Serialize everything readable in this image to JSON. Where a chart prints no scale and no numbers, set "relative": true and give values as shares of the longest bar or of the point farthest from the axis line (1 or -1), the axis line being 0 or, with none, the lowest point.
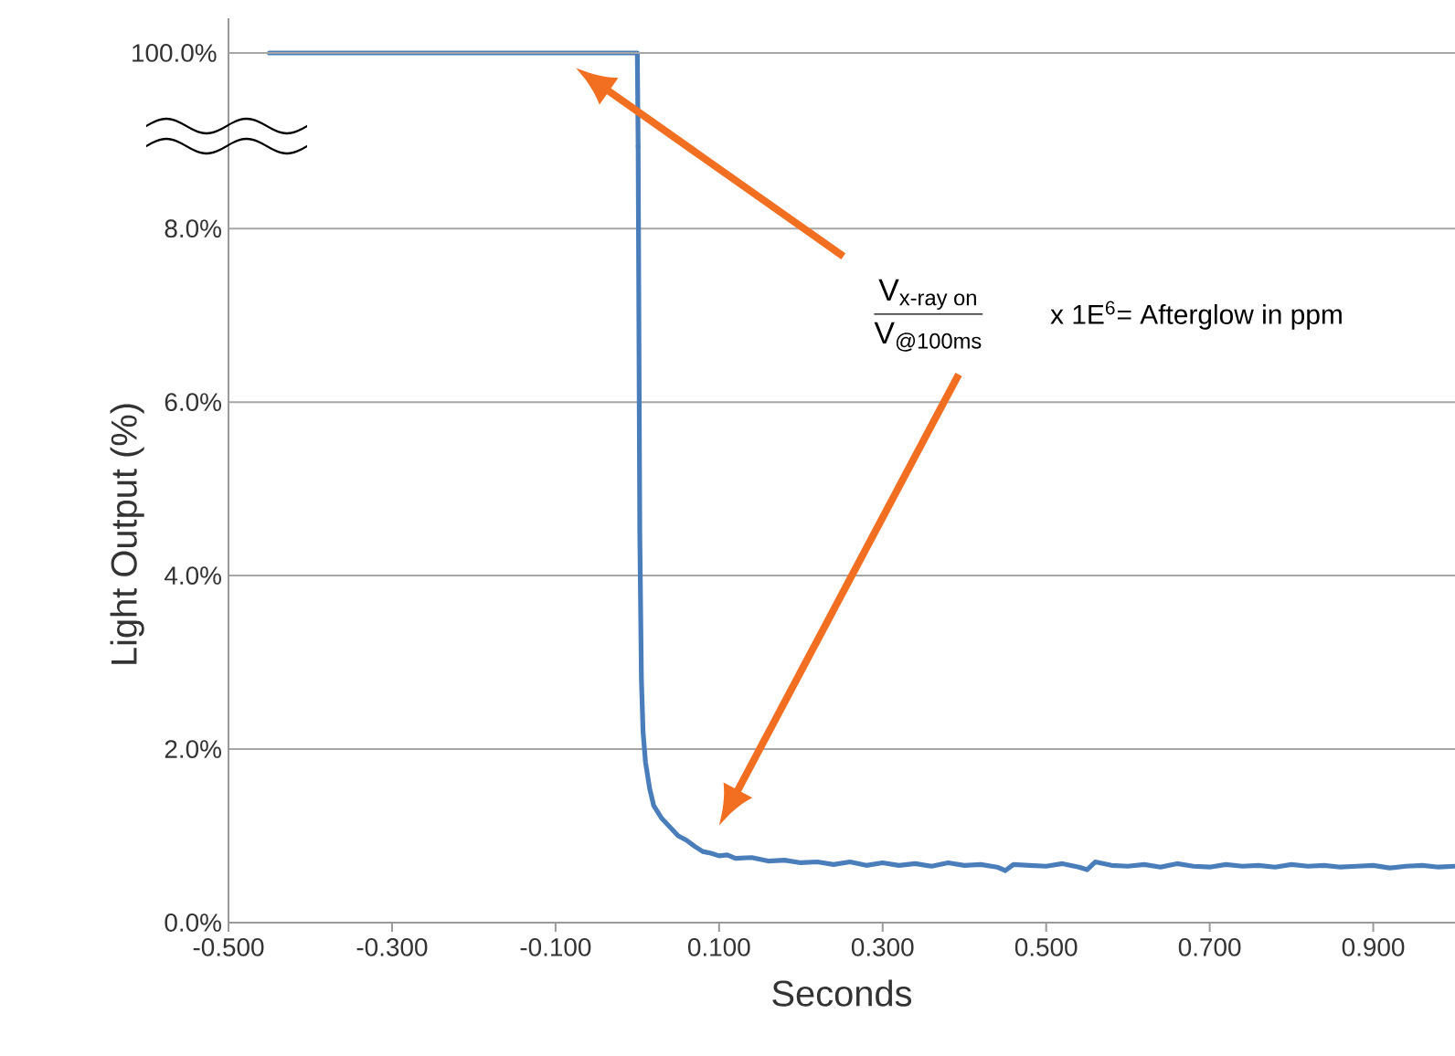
{
  "chart_data": [
    {
      "type": "line",
      "xlim": [
        -0.5,
        1.0
      ],
      "relative": true,
      "ref_lines": [
        {
          "axis": "y",
          "value": 1,
          "label": "100.0%"
        }
      ],
      "series": [
        {
          "color": "#4a7ebb",
          "x": [
            -0.45,
            -0.2,
            0.0,
            0.001
          ],
          "values": [
            1,
            1,
            1,
            0
          ]
        }
      ]
    },
    {
      "type": "line",
      "xlim": [
        -0.5,
        1.0
      ],
      "ylim": [
        0,
        8.95
      ],
      "xlabel": "Seconds",
      "ylabel": "Light Output (%)",
      "grid": "y",
      "xticks": [
        {
          "value": -0.5,
          "label": "-0.500"
        },
        {
          "value": -0.3,
          "label": "-0.300"
        },
        {
          "value": -0.1,
          "label": "-0.100"
        },
        {
          "value": 0.1,
          "label": "0.100"
        },
        {
          "value": 0.3,
          "label": "0.300"
        },
        {
          "value": 0.5,
          "label": "0.500"
        },
        {
          "value": 0.7,
          "label": "0.700"
        },
        {
          "value": 0.9,
          "label": "0.900"
        }
      ],
      "yticks": [
        {
          "value": 0,
          "label": "0.0%"
        },
        {
          "value": 2,
          "label": "2.0%"
        },
        {
          "value": 4,
          "label": "4.0%"
        },
        {
          "value": 6,
          "label": "6.0%"
        },
        {
          "value": 8,
          "label": "8.0%"
        }
      ],
      "annotations": [
        "\\frac{\\text{V}_{\\text{x-ray on}}}{\\text{V}_{\\text{@100ms}}}",
        "x 1E$^{6}$= Afterglow in ppm"
      ],
      "series": [
        {
          "color": "#4a7ebb",
          "x": [
            0.001,
            0.003,
            0.005,
            0.007,
            0.01,
            0.015,
            0.02,
            0.03,
            0.04,
            0.05,
            0.06,
            0.07,
            0.08,
            0.09,
            0.1,
            0.11,
            0.12,
            0.14,
            0.16,
            0.18,
            0.2,
            0.22,
            0.24,
            0.26,
            0.28,
            0.3,
            0.32,
            0.34,
            0.36,
            0.38,
            0.4,
            0.42,
            0.44,
            0.45,
            0.46,
            0.48,
            0.5,
            0.52,
            0.54,
            0.55,
            0.56,
            0.58,
            0.6,
            0.62,
            0.64,
            0.66,
            0.68,
            0.7,
            0.72,
            0.74,
            0.76,
            0.78,
            0.8,
            0.82,
            0.84,
            0.86,
            0.88,
            0.9,
            0.92,
            0.94,
            0.96,
            0.98,
            1.0
          ],
          "values": [
            8.95,
            4.5,
            2.8,
            2.2,
            1.85,
            1.55,
            1.35,
            1.2,
            1.1,
            1.0,
            0.95,
            0.88,
            0.82,
            0.8,
            0.77,
            0.78,
            0.74,
            0.75,
            0.71,
            0.72,
            0.69,
            0.7,
            0.67,
            0.7,
            0.66,
            0.69,
            0.66,
            0.68,
            0.65,
            0.69,
            0.66,
            0.67,
            0.64,
            0.6,
            0.67,
            0.66,
            0.65,
            0.68,
            0.64,
            0.61,
            0.7,
            0.66,
            0.65,
            0.67,
            0.64,
            0.68,
            0.65,
            0.64,
            0.67,
            0.65,
            0.66,
            0.64,
            0.67,
            0.65,
            0.66,
            0.64,
            0.65,
            0.66,
            0.63,
            0.65,
            0.66,
            0.64,
            0.65
          ]
        }
      ]
    }
  ]
}
